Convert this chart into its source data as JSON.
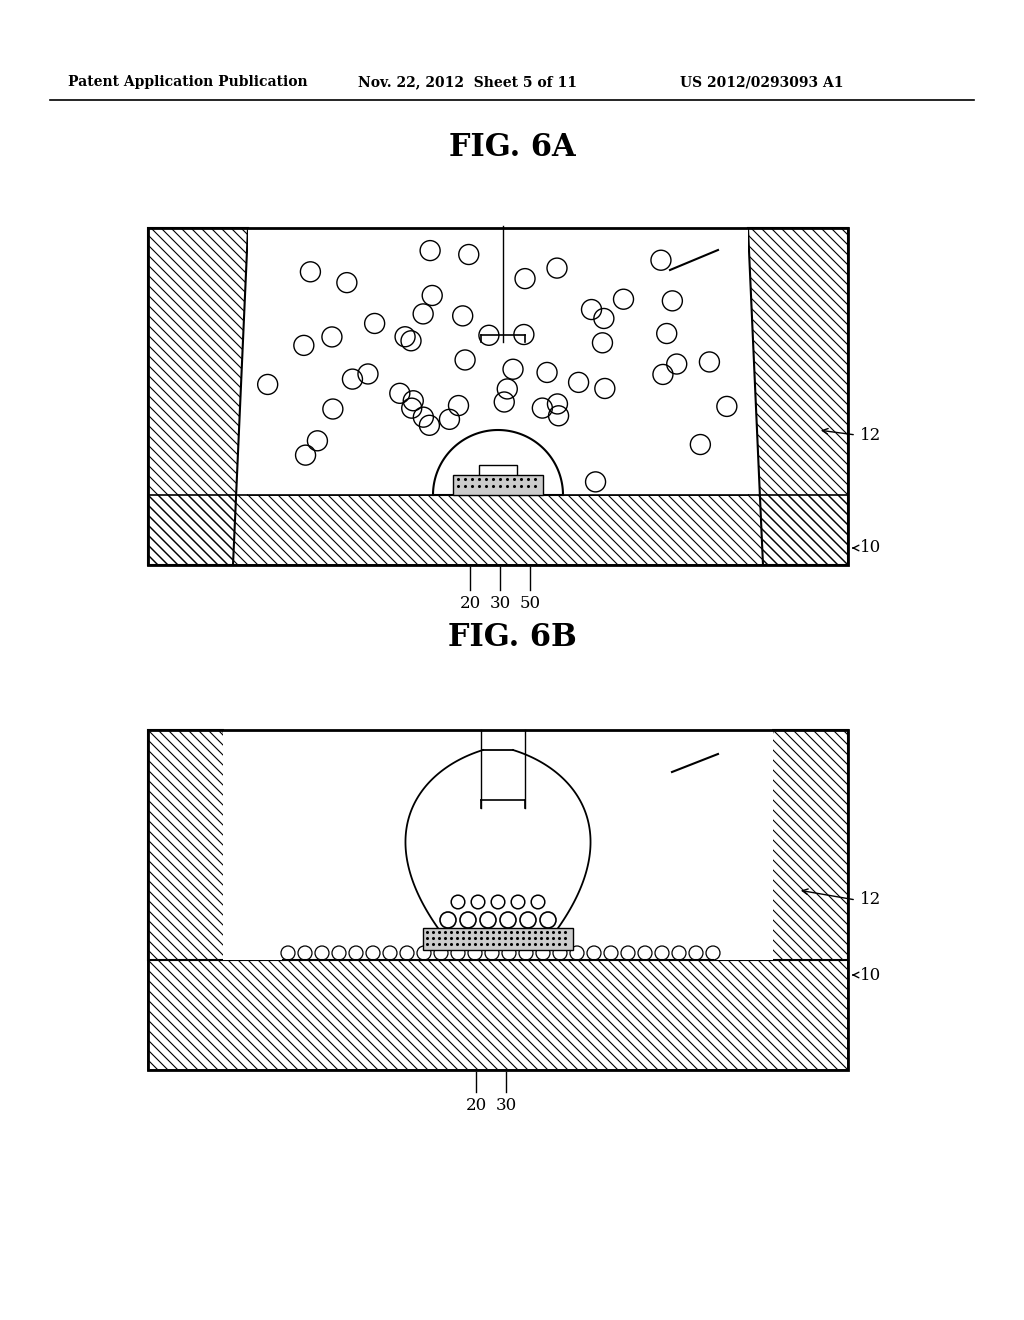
{
  "header_left": "Patent Application Publication",
  "header_mid": "Nov. 22, 2012  Sheet 5 of 11",
  "header_right": "US 2012/0293093 A1",
  "fig6a_label": "FIG. 6A",
  "fig6b_label": "FIG. 6B",
  "bg_color": "#ffffff"
}
